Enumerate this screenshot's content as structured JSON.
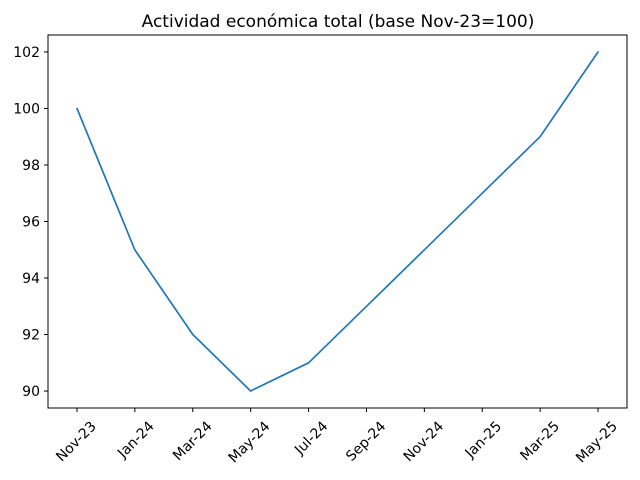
{
  "chart_data": {
    "type": "line",
    "title": "Actividad económica total (base Nov-23=100)",
    "categories": [
      "Nov-23",
      "Jan-24",
      "Mar-24",
      "May-24",
      "Jul-24",
      "Sep-24",
      "Nov-24",
      "Jan-25",
      "Mar-25",
      "May-25"
    ],
    "values": [
      100,
      95,
      92,
      90,
      91,
      93,
      95,
      97,
      99,
      102
    ],
    "xlabel": "",
    "ylabel": "",
    "yticks": [
      90,
      92,
      94,
      96,
      98,
      100,
      102
    ],
    "ylim": [
      89.4,
      102.6
    ],
    "xlim_index": [
      -0.5,
      9.5
    ],
    "x_tick_rotation_deg": 45,
    "grid": false,
    "legend": "none",
    "line_color": "#1f77b4",
    "axis_color": "#000000",
    "background_color": "#ffffff"
  }
}
